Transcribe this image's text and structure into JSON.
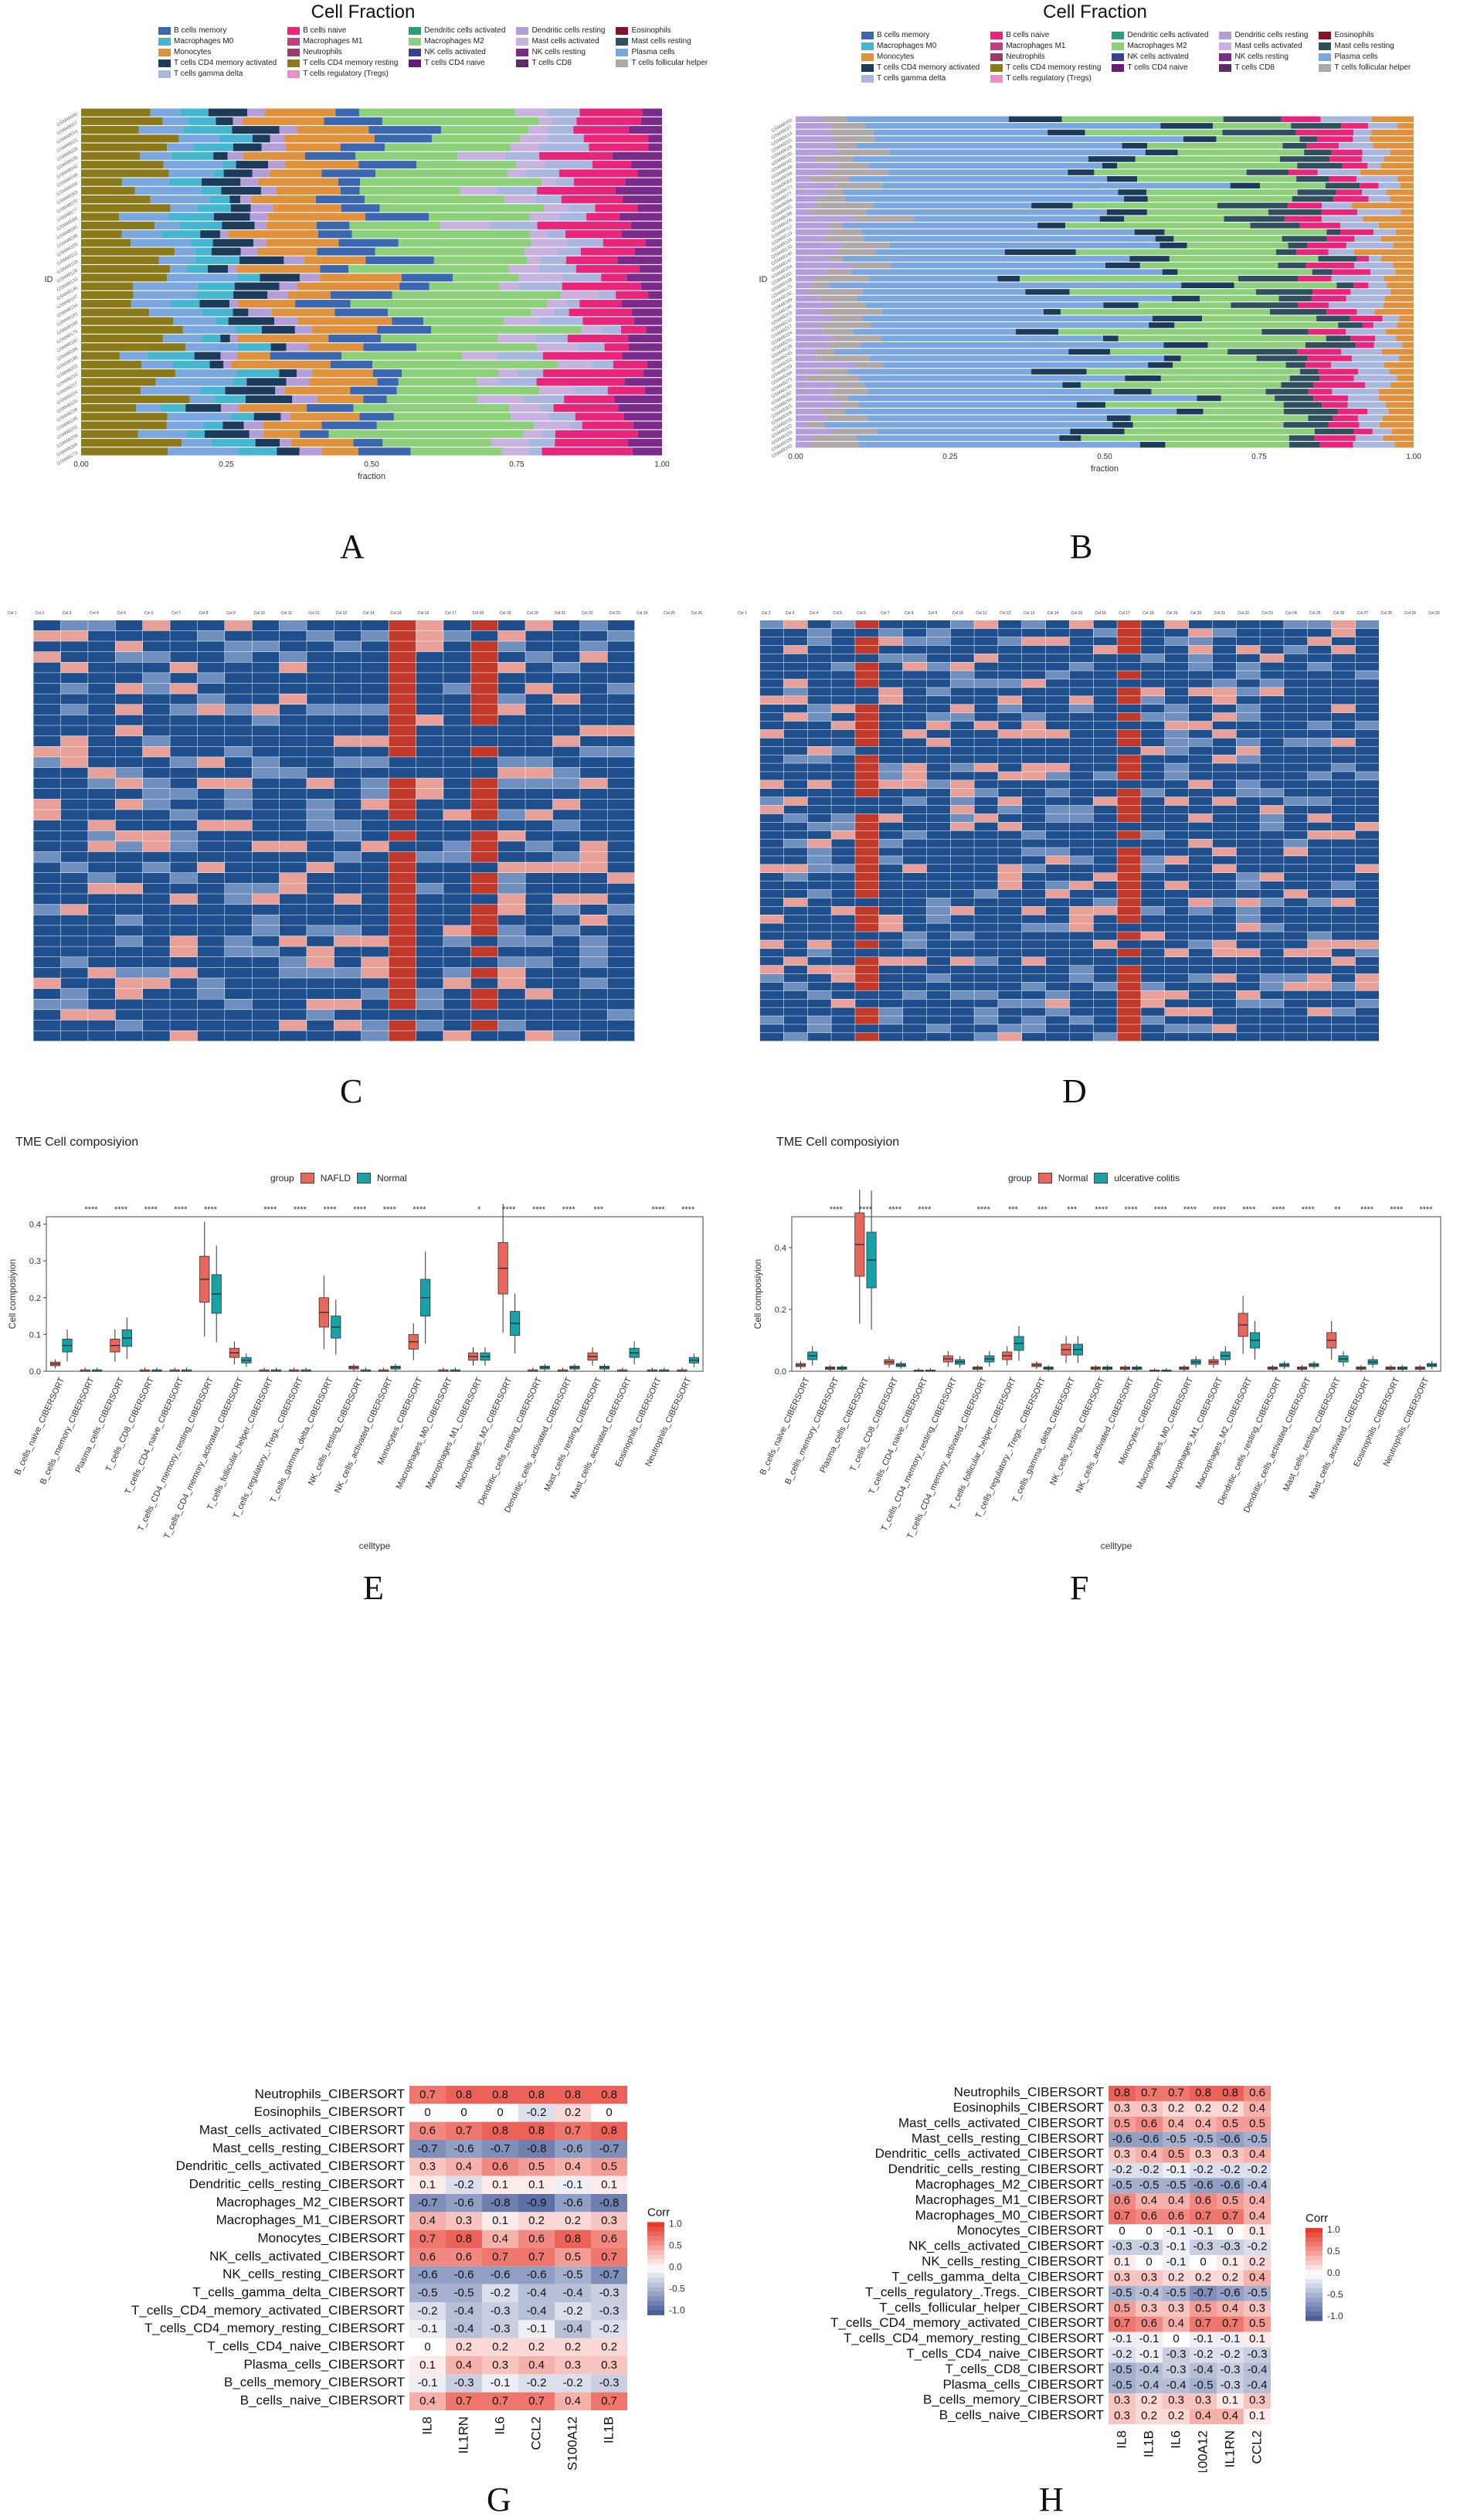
{
  "panel_labels": {
    "a": "A",
    "b": "B",
    "c": "C",
    "d": "D",
    "e": "E",
    "f": "F",
    "g": "G",
    "h": "H"
  },
  "colors": {
    "B_cells_memory": "#3a67b0",
    "B_cells_naive": "#e8247b",
    "Dendritic_cells_activated": "#2a9d7c",
    "Dendritic_cells_resting": "#b39ddb",
    "Eosinophils": "#8b0f2d",
    "Macrophages_M0": "#44b6d1",
    "Macrophages_M1": "#c0407f",
    "Macrophages_M2": "#8dd07a",
    "Mast_cells_activated": "#c8b3e0",
    "Mast_cells_resting": "#2f4f5f",
    "Monocytes": "#e0913c",
    "Neutrophils": "#9b3b6b",
    "NK_cells_activated": "#3b3f8f",
    "NK_cells_resting": "#7a2a8a",
    "Plasma_cells": "#7ba7e0",
    "T_cells_CD4_memory_activated": "#1c3a5a",
    "T_cells_CD4_memory_resting": "#8a7a1a",
    "T_cells_CD4_naive": "#6a1a7a",
    "T_cells_CD8": "#5d2a6a",
    "T_cells_follicular_helper": "#b0a8a8",
    "T_cells_gamma_delta": "#a9b6e0",
    "T_cells_regulatory": "#e98fc4",
    "nafld": "#e8675a",
    "normal_teal": "#17a2a8"
  },
  "chart_data": [
    {
      "id": "A",
      "type": "bar",
      "orientation": "horizontal",
      "stacked": true,
      "title": "Cell Fraction",
      "xlabel": "fraction",
      "ylabel": "ID",
      "xticks": [
        "0.00",
        "0.25",
        "0.50",
        "0.75",
        "1.00"
      ],
      "xlim": [
        0,
        1
      ],
      "legend": [
        "B cells memory",
        "B cells naive",
        "Dendritic cells activated",
        "Dendritic cells resting",
        "Eosinophils",
        "Macrophages M0",
        "Macrophages M1",
        "Macrophages M2",
        "Mast cells activated",
        "Mast cells resting",
        "Monocytes",
        "Neutrophils",
        "NK cells activated",
        "NK cells resting",
        "Plasma cells",
        "T cells CD4 memory activated",
        "T cells CD4 memory resting",
        "T cells CD4 naive",
        "T cells CD8",
        "T cells follicular helper",
        "T cells gamma delta",
        "T cells regulatory (Tregs)"
      ],
      "bar_count": 40,
      "typical_composition": [
        {
          "name": "T cells CD4 memory resting",
          "value": 0.12
        },
        {
          "name": "Plasma cells",
          "value": 0.08
        },
        {
          "name": "Macrophages M0",
          "value": 0.05
        },
        {
          "name": "T cells CD4 memory activated",
          "value": 0.05
        },
        {
          "name": "Dendritic cells resting",
          "value": 0.03
        },
        {
          "name": "Monocytes",
          "value": 0.12
        },
        {
          "name": "B cells memory",
          "value": 0.08
        },
        {
          "name": "Macrophages M2",
          "value": 0.22
        },
        {
          "name": "Mast cells activated",
          "value": 0.05
        },
        {
          "name": "T cells gamma delta",
          "value": 0.05
        },
        {
          "name": "B cells naive",
          "value": 0.1
        },
        {
          "name": "NK cells resting",
          "value": 0.05
        }
      ]
    },
    {
      "id": "B",
      "type": "bar",
      "orientation": "horizontal",
      "stacked": true,
      "title": "Cell Fraction",
      "xlabel": "fraction",
      "ylabel": "ID",
      "xticks": [
        "0.00",
        "0.25",
        "0.50",
        "0.75",
        "1.00"
      ],
      "xlim": [
        0,
        1
      ],
      "legend": [
        "B cells memory",
        "B cells naive",
        "Dendritic cells activated",
        "Dendritic cells resting",
        "Eosinophils",
        "Macrophages M0",
        "Macrophages M1",
        "Macrophages M2",
        "Mast cells activated",
        "Mast cells resting",
        "Monocytes",
        "Neutrophils",
        "NK cells activated",
        "NK cells resting",
        "Plasma cells",
        "T cells CD4 memory activated",
        "T cells CD4 memory resting",
        "T cells CD4 naive",
        "T cells CD8",
        "T cells follicular helper",
        "T cells gamma delta",
        "T cells regulatory (Tregs)"
      ],
      "bar_count": 50,
      "typical_composition": [
        {
          "name": "Dendritic cells resting",
          "value": 0.05
        },
        {
          "name": "T cells follicular helper",
          "value": 0.06
        },
        {
          "name": "Plasma cells",
          "value": 0.4
        },
        {
          "name": "T cells CD4 memory activated",
          "value": 0.06
        },
        {
          "name": "Macrophages M2",
          "value": 0.22
        },
        {
          "name": "Mast cells resting",
          "value": 0.06
        },
        {
          "name": "B cells naive",
          "value": 0.05
        },
        {
          "name": "T cells gamma delta",
          "value": 0.05
        },
        {
          "name": "Monocytes",
          "value": 0.05
        }
      ]
    },
    {
      "id": "C",
      "type": "table",
      "description_rows": 40
    },
    {
      "id": "D",
      "type": "table",
      "description_rows": 50
    },
    {
      "id": "E",
      "type": "box",
      "title": "TME Cell composiyion",
      "xlabel": "celltype",
      "ylabel": "Cell composiyion",
      "ylim": [
        0,
        0.42
      ],
      "yticks": [
        "0.0",
        "0.1",
        "0.2",
        "0.3",
        "0.4"
      ],
      "legend_title": "group",
      "groups": [
        "NAFLD",
        "Normal"
      ],
      "categories": [
        "B_cells_naive_CIBERSORT",
        "B_cells_memory_CIBERSORT",
        "Plasma_cells_CIBERSORT",
        "T_cells_CD8_CIBERSORT",
        "T_cells_CD4_naive_CIBERSORT",
        "T_cells_CD4_memory_resting_CIBERSORT",
        "T_cells_CD4_memory_activated_CIBERSORT",
        "T_cells_follicular_helper_CIBERSORT",
        "T_cells_regulatory_.Tregs._CIBERSORT",
        "T_cells_gamma_delta_CIBERSORT",
        "NK_cells_resting_CIBERSORT",
        "NK_cells_activated_CIBERSORT",
        "Monocytes_CIBERSORT",
        "Macrophages_M0_CIBERSORT",
        "Macrophages_M1_CIBERSORT",
        "Macrophages_M2_CIBERSORT",
        "Dendritic_cells_resting_CIBERSORT",
        "Dendritic_cells_activated_CIBERSORT",
        "Mast_cells_resting_CIBERSORT",
        "Mast_cells_activated_CIBERSORT",
        "Eosinophils_CIBERSORT",
        "Neutrophils_CIBERSORT"
      ],
      "medians_a": [
        0.02,
        0,
        0.07,
        0,
        0,
        0.25,
        0.05,
        0,
        0,
        0.16,
        0.01,
        0,
        0.08,
        0,
        0.04,
        0.28,
        0,
        0,
        0.04,
        0,
        0,
        0
      ],
      "medians_b": [
        0.07,
        0,
        0.09,
        0,
        0,
        0.21,
        0.03,
        0,
        0,
        0.12,
        0,
        0.01,
        0.2,
        0,
        0.04,
        0.13,
        0.01,
        0.01,
        0.01,
        0.05,
        0,
        0.03
      ],
      "significance": [
        "",
        "****",
        "****",
        "****",
        "****",
        "****",
        "",
        "****",
        "****",
        "****",
        "****",
        "****",
        "****",
        "",
        "*",
        "****",
        "****",
        "****",
        "***",
        "",
        "****",
        "****"
      ]
    },
    {
      "id": "F",
      "type": "box",
      "title": "TME Cell composiyion",
      "xlabel": "celltype",
      "ylabel": "Cell composiyion",
      "ylim": [
        0,
        0.5
      ],
      "yticks": [
        "0.0",
        "0.2",
        "0.4"
      ],
      "legend_title": "group",
      "groups": [
        "Normal",
        "ulcerative colitis"
      ],
      "categories": [
        "B_cells_naive_CIBERSORT",
        "B_cells_memory_CIBERSORT",
        "Plasma_cells_CIBERSORT",
        "T_cells_CD8_CIBERSORT",
        "T_cells_CD4_naive_CIBERSORT",
        "T_cells_CD4_memory_resting_CIBERSORT",
        "T_cells_CD4_memory_activated_CIBERSORT",
        "T_cells_follicular_helper_CIBERSORT",
        "T_cells_regulatory_.Tregs._CIBERSORT",
        "T_cells_gamma_delta_CIBERSORT",
        "NK_cells_resting_CIBERSORT",
        "NK_cells_activated_CIBERSORT",
        "Monocytes_CIBERSORT",
        "Macrophages_M0_CIBERSORT",
        "Macrophages_M1_CIBERSORT",
        "Macrophages_M2_CIBERSORT",
        "Dendritic_cells_resting_CIBERSORT",
        "Dendritic_cells_activated_CIBERSORT",
        "Mast_cells_resting_CIBERSORT",
        "Mast_cells_activated_CIBERSORT",
        "Eosinophils_CIBERSORT",
        "Neutrophils_CIBERSORT"
      ],
      "medians_a": [
        0.02,
        0.01,
        0.41,
        0.03,
        0,
        0.04,
        0.01,
        0.05,
        0.02,
        0.07,
        0.01,
        0.01,
        0,
        0.01,
        0.03,
        0.15,
        0.01,
        0.01,
        0.1,
        0.01,
        0.01,
        0.01
      ],
      "medians_b": [
        0.05,
        0.01,
        0.36,
        0.02,
        0,
        0.03,
        0.04,
        0.09,
        0.01,
        0.07,
        0.01,
        0.01,
        0,
        0.03,
        0.05,
        0.1,
        0.02,
        0.02,
        0.04,
        0.03,
        0.01,
        0.02
      ],
      "significance": [
        "",
        "****",
        "****",
        "****",
        "****",
        "",
        "****",
        "***",
        "***",
        "***",
        "****",
        "****",
        "****",
        "****",
        "****",
        "****",
        "****",
        "****",
        "**",
        "****",
        "****",
        "****"
      ]
    },
    {
      "id": "G",
      "type": "heatmap",
      "legend_title": "Corr",
      "legend_ticks": [
        "1.0",
        "0.5",
        "0.0",
        "-0.5",
        "-1.0"
      ],
      "rows": [
        "Neutrophils_CIBERSORT",
        "Eosinophils_CIBERSORT",
        "Mast_cells_activated_CIBERSORT",
        "Mast_cells_resting_CIBERSORT",
        "Dendritic_cells_activated_CIBERSORT",
        "Dendritic_cells_resting_CIBERSORT",
        "Macrophages_M2_CIBERSORT",
        "Macrophages_M1_CIBERSORT",
        "Monocytes_CIBERSORT",
        "NK_cells_activated_CIBERSORT",
        "NK_cells_resting_CIBERSORT",
        "T_cells_gamma_delta_CIBERSORT",
        "T_cells_CD4_memory_activated_CIBERSORT",
        "T_cells_CD4_memory_resting_CIBERSORT",
        "T_cells_CD4_naive_CIBERSORT",
        "Plasma_cells_CIBERSORT",
        "B_cells_memory_CIBERSORT",
        "B_cells_naive_CIBERSORT"
      ],
      "cols": [
        "IL8",
        "IL1RN",
        "IL6",
        "CCL2",
        "S100A12",
        "IL1B"
      ],
      "values": [
        [
          0.7,
          0.8,
          0.8,
          0.8,
          0.8,
          0.8
        ],
        [
          0,
          0,
          0,
          -0.2,
          0.2,
          0
        ],
        [
          0.6,
          0.7,
          0.8,
          0.8,
          0.7,
          0.8
        ],
        [
          -0.7,
          -0.6,
          -0.7,
          -0.8,
          -0.6,
          -0.7
        ],
        [
          0.3,
          0.4,
          0.6,
          0.5,
          0.4,
          0.5
        ],
        [
          0.1,
          -0.2,
          0.1,
          0.1,
          -0.1,
          0.1
        ],
        [
          -0.7,
          -0.6,
          -0.8,
          -0.9,
          -0.6,
          -0.8
        ],
        [
          0.4,
          0.3,
          0.1,
          0.2,
          0.2,
          0.3
        ],
        [
          0.7,
          0.8,
          0.4,
          0.6,
          0.8,
          0.6
        ],
        [
          0.6,
          0.6,
          0.7,
          0.7,
          0.5,
          0.7
        ],
        [
          -0.6,
          -0.6,
          -0.6,
          -0.6,
          -0.5,
          -0.7
        ],
        [
          -0.5,
          -0.5,
          -0.2,
          -0.4,
          -0.4,
          -0.3
        ],
        [
          -0.2,
          -0.4,
          -0.3,
          -0.4,
          -0.2,
          -0.3
        ],
        [
          -0.1,
          -0.4,
          -0.3,
          -0.1,
          -0.4,
          -0.2
        ],
        [
          0,
          0.2,
          0.2,
          0.2,
          0.2,
          0.2
        ],
        [
          0.1,
          0.4,
          0.3,
          0.4,
          0.3,
          0.3
        ],
        [
          -0.1,
          -0.3,
          -0.1,
          -0.2,
          -0.2,
          -0.3
        ],
        [
          0.4,
          0.7,
          0.7,
          0.7,
          0.4,
          0.7
        ]
      ]
    },
    {
      "id": "H",
      "type": "heatmap",
      "legend_title": "Corr",
      "legend_ticks": [
        "1.0",
        "0.5",
        "0.0",
        "-0.5",
        "-1.0"
      ],
      "rows": [
        "Neutrophils_CIBERSORT",
        "Eosinophils_CIBERSORT",
        "Mast_cells_activated_CIBERSORT",
        "Mast_cells_resting_CIBERSORT",
        "Dendritic_cells_activated_CIBERSORT",
        "Dendritic_cells_resting_CIBERSORT",
        "Macrophages_M2_CIBERSORT",
        "Macrophages_M1_CIBERSORT",
        "Macrophages_M0_CIBERSORT",
        "Monocytes_CIBERSORT",
        "NK_cells_activated_CIBERSORT",
        "NK_cells_resting_CIBERSORT",
        "T_cells_gamma_delta_CIBERSORT",
        "T_cells_regulatory_.Tregs._CIBERSORT",
        "T_cells_follicular_helper_CIBERSORT",
        "T_cells_CD4_memory_activated_CIBERSORT",
        "T_cells_CD4_memory_resting_CIBERSORT",
        "T_cells_CD4_naive_CIBERSORT",
        "T_cells_CD8_CIBERSORT",
        "Plasma_cells_CIBERSORT",
        "B_cells_memory_CIBERSORT",
        "B_cells_naive_CIBERSORT"
      ],
      "cols": [
        "IL8",
        "IL1B",
        "IL6",
        "S100A12",
        "IL1RN",
        "CCL2"
      ],
      "values": [
        [
          0.8,
          0.7,
          0.7,
          0.8,
          0.8,
          0.6
        ],
        [
          0.3,
          0.3,
          0.2,
          0.2,
          0.2,
          0.4
        ],
        [
          0.5,
          0.6,
          0.4,
          0.4,
          0.5,
          0.5
        ],
        [
          -0.6,
          -0.6,
          -0.5,
          -0.5,
          -0.6,
          -0.5
        ],
        [
          0.3,
          0.4,
          0.5,
          0.3,
          0.3,
          0.4
        ],
        [
          -0.2,
          -0.2,
          -0.1,
          -0.2,
          -0.2,
          -0.2
        ],
        [
          -0.5,
          -0.5,
          -0.5,
          -0.6,
          -0.6,
          -0.4
        ],
        [
          0.6,
          0.4,
          0.4,
          0.6,
          0.5,
          0.4
        ],
        [
          0.7,
          0.6,
          0.6,
          0.7,
          0.7,
          0.4
        ],
        [
          0,
          0,
          -0.1,
          -0.1,
          0,
          0.1
        ],
        [
          -0.3,
          -0.3,
          -0.1,
          -0.3,
          -0.3,
          -0.2
        ],
        [
          0.1,
          0,
          -0.1,
          0,
          0.1,
          0.2
        ],
        [
          0.3,
          0.3,
          0.2,
          0.2,
          0.2,
          0.4
        ],
        [
          -0.5,
          -0.4,
          -0.5,
          -0.7,
          -0.6,
          -0.5
        ],
        [
          0.5,
          0.3,
          0.3,
          0.5,
          0.4,
          0.3
        ],
        [
          0.7,
          0.6,
          0.4,
          0.7,
          0.7,
          0.5
        ],
        [
          -0.1,
          -0.1,
          0,
          -0.1,
          -0.1,
          0.1
        ],
        [
          -0.2,
          -0.1,
          -0.3,
          -0.2,
          -0.2,
          -0.3
        ],
        [
          -0.5,
          -0.4,
          -0.3,
          -0.4,
          -0.3,
          -0.4
        ],
        [
          -0.5,
          -0.4,
          -0.4,
          -0.5,
          -0.3,
          -0.4
        ],
        [
          0.3,
          0.2,
          0.3,
          0.3,
          0.1,
          0.3
        ],
        [
          0.3,
          0.2,
          0.2,
          0.4,
          0.4,
          0.1
        ]
      ]
    }
  ]
}
